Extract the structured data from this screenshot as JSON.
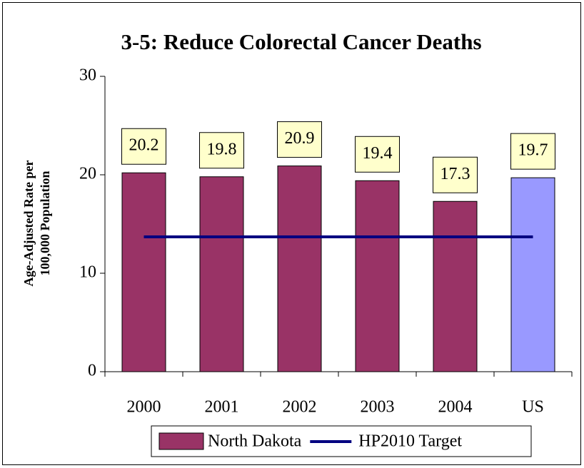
{
  "chart_data": {
    "type": "bar",
    "title": "3-5: Reduce Colorectal Cancer Deaths",
    "ylabel": [
      "Age-Adjusted Rate per",
      "100,000 Population"
    ],
    "categories": [
      "2000",
      "2001",
      "2002",
      "2003",
      "2004",
      "US"
    ],
    "series": [
      {
        "name": "North Dakota",
        "type": "bar",
        "color": "#993366",
        "colors": [
          "#993366",
          "#993366",
          "#993366",
          "#993366",
          "#993366",
          "#9999ff"
        ],
        "values": [
          20.2,
          19.8,
          20.9,
          19.4,
          17.3,
          19.7
        ]
      },
      {
        "name": "HP2010 Target",
        "type": "line",
        "color": "#000080",
        "values": [
          13.7,
          13.7,
          13.7,
          13.7,
          13.7,
          13.7
        ]
      }
    ],
    "ylim": [
      0,
      30
    ],
    "yticks": [
      0,
      10,
      20,
      30
    ],
    "grid": false,
    "label_fill": "#ffffcc",
    "legend": "bottom"
  }
}
